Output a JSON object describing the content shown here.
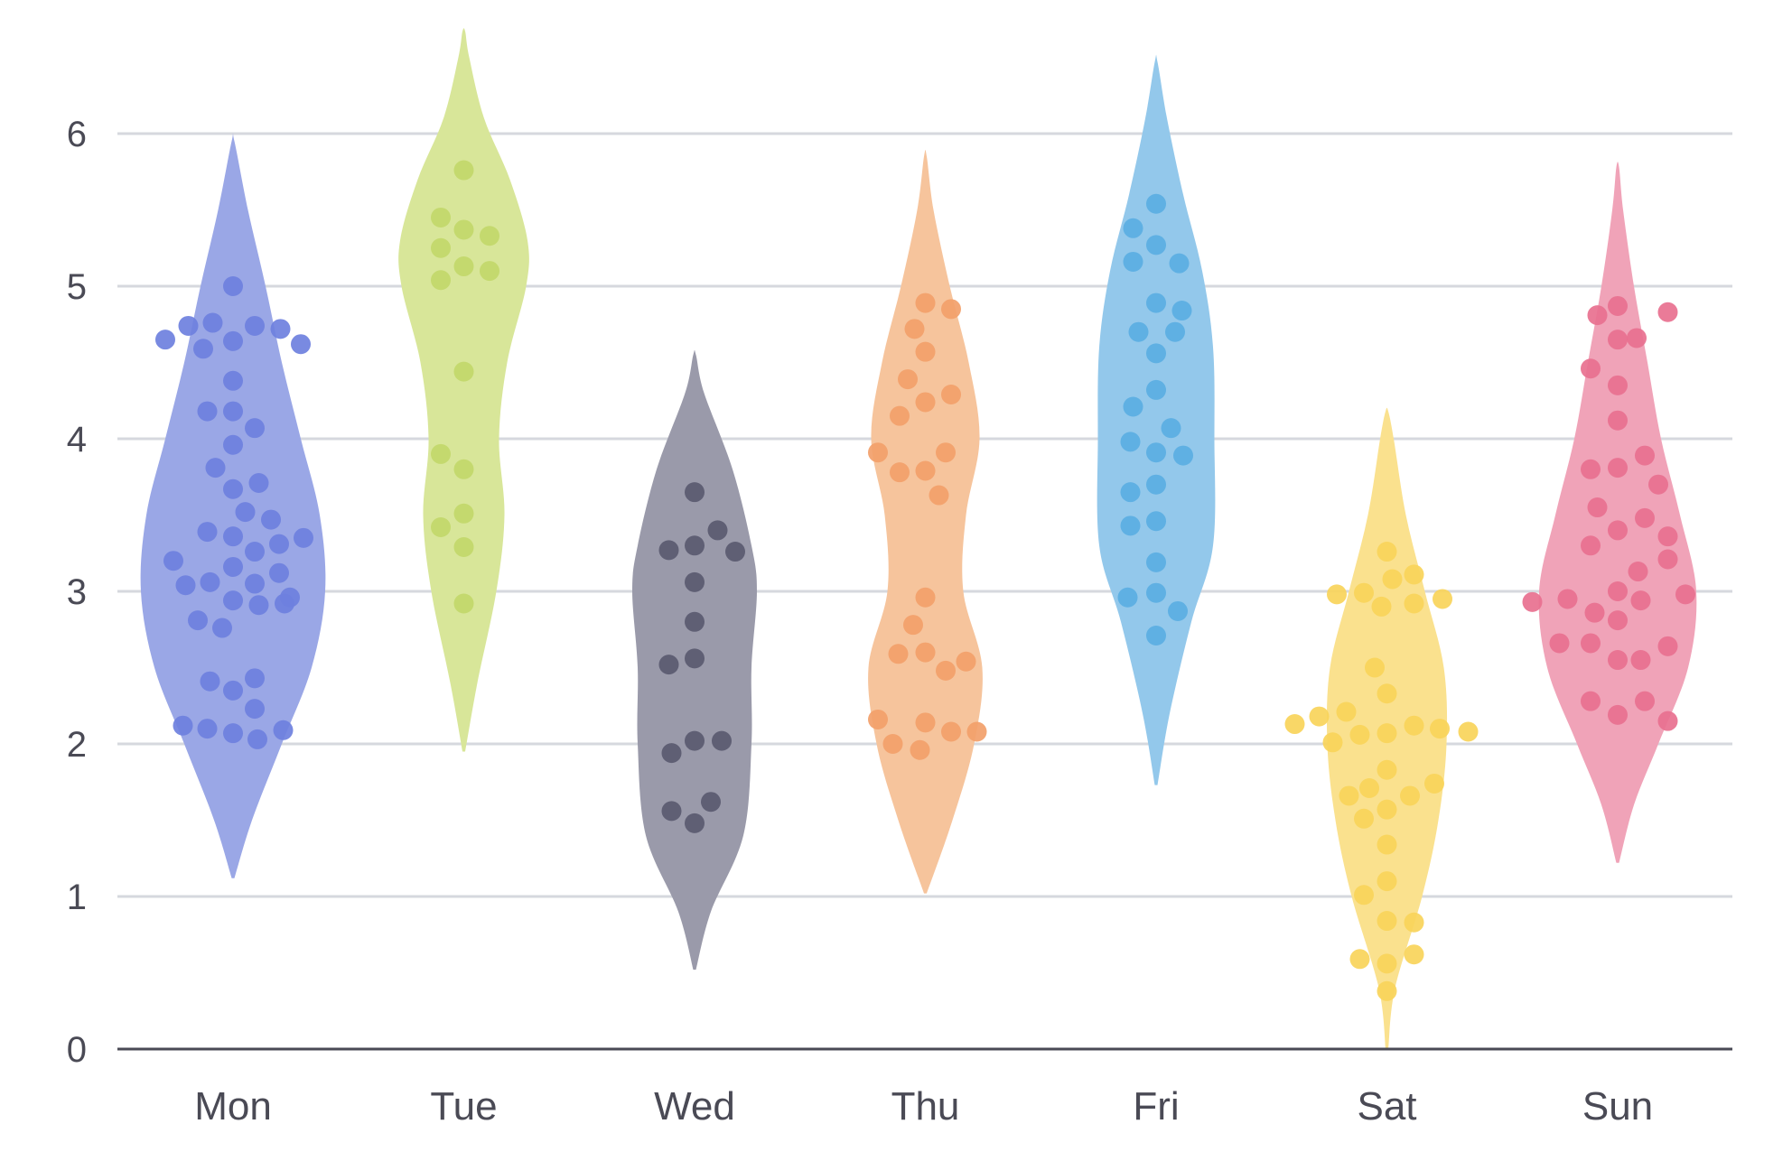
{
  "chart_data": {
    "type": "violin",
    "title": "",
    "xlabel": "",
    "ylabel": "",
    "ylim": [
      0,
      6.7
    ],
    "yticks": [
      0,
      1,
      2,
      3,
      4,
      5,
      6
    ],
    "grid": true,
    "categories": [
      "Mon",
      "Tue",
      "Wed",
      "Thu",
      "Fri",
      "Sat",
      "Sun"
    ],
    "series": [
      {
        "category": "Mon",
        "violin_color": "#9aa7e6",
        "point_color": "#6e80de",
        "density": [
          [
            1.12,
            0.01
          ],
          [
            1.5,
            0.14
          ],
          [
            2.0,
            0.36
          ],
          [
            2.5,
            0.58
          ],
          [
            3.0,
            0.68
          ],
          [
            3.5,
            0.64
          ],
          [
            4.0,
            0.5
          ],
          [
            4.5,
            0.36
          ],
          [
            5.0,
            0.24
          ],
          [
            5.5,
            0.11
          ],
          [
            5.95,
            0.01
          ]
        ],
        "points": [
          [
            -0.5,
            4.65
          ],
          [
            -0.33,
            4.74
          ],
          [
            -0.22,
            4.59
          ],
          [
            -0.15,
            4.76
          ],
          [
            0.0,
            4.64
          ],
          [
            0.16,
            4.74
          ],
          [
            0.35,
            4.72
          ],
          [
            0.5,
            4.62
          ],
          [
            0.0,
            5.0
          ],
          [
            0.0,
            4.38
          ],
          [
            -0.19,
            4.18
          ],
          [
            0.0,
            4.18
          ],
          [
            0.16,
            4.07
          ],
          [
            0.0,
            3.96
          ],
          [
            -0.13,
            3.81
          ],
          [
            0.0,
            3.67
          ],
          [
            0.19,
            3.71
          ],
          [
            0.09,
            3.52
          ],
          [
            0.28,
            3.47
          ],
          [
            -0.19,
            3.39
          ],
          [
            0.0,
            3.36
          ],
          [
            0.34,
            3.31
          ],
          [
            0.52,
            3.35
          ],
          [
            0.16,
            3.26
          ],
          [
            -0.44,
            3.2
          ],
          [
            0.0,
            3.16
          ],
          [
            0.34,
            3.12
          ],
          [
            -0.35,
            3.04
          ],
          [
            -0.17,
            3.06
          ],
          [
            0.16,
            3.05
          ],
          [
            0.0,
            2.94
          ],
          [
            0.19,
            2.91
          ],
          [
            0.38,
            2.92
          ],
          [
            0.42,
            2.96
          ],
          [
            -0.26,
            2.81
          ],
          [
            -0.08,
            2.76
          ],
          [
            -0.17,
            2.41
          ],
          [
            0.0,
            2.35
          ],
          [
            0.16,
            2.43
          ],
          [
            0.16,
            2.23
          ],
          [
            -0.37,
            2.12
          ],
          [
            -0.19,
            2.1
          ],
          [
            0.0,
            2.07
          ],
          [
            0.18,
            2.03
          ],
          [
            0.37,
            2.09
          ]
        ]
      },
      {
        "category": "Tue",
        "violin_color": "#d8e699",
        "point_color": "#c2d86a",
        "density": [
          [
            1.95,
            0.01
          ],
          [
            2.4,
            0.1
          ],
          [
            3.0,
            0.24
          ],
          [
            3.5,
            0.3
          ],
          [
            4.0,
            0.26
          ],
          [
            4.5,
            0.32
          ],
          [
            5.0,
            0.46
          ],
          [
            5.3,
            0.47
          ],
          [
            5.7,
            0.34
          ],
          [
            6.1,
            0.15
          ],
          [
            6.5,
            0.04
          ],
          [
            6.67,
            0.01
          ]
        ],
        "points": [
          [
            0.0,
            5.76
          ],
          [
            -0.17,
            5.45
          ],
          [
            0.0,
            5.37
          ],
          [
            0.19,
            5.33
          ],
          [
            -0.17,
            5.25
          ],
          [
            0.0,
            5.13
          ],
          [
            0.19,
            5.1
          ],
          [
            -0.17,
            5.04
          ],
          [
            0.0,
            4.44
          ],
          [
            -0.17,
            3.9
          ],
          [
            0.0,
            3.8
          ],
          [
            0.0,
            3.51
          ],
          [
            -0.17,
            3.42
          ],
          [
            0.0,
            3.29
          ],
          [
            0.0,
            2.92
          ]
        ]
      },
      {
        "category": "Wed",
        "violin_color": "#9a9aaa",
        "point_color": "#5a5a70",
        "density": [
          [
            0.52,
            0.01
          ],
          [
            0.9,
            0.12
          ],
          [
            1.4,
            0.36
          ],
          [
            2.0,
            0.42
          ],
          [
            2.5,
            0.42
          ],
          [
            3.0,
            0.46
          ],
          [
            3.3,
            0.42
          ],
          [
            3.8,
            0.28
          ],
          [
            4.3,
            0.07
          ],
          [
            4.55,
            0.01
          ]
        ],
        "points": [
          [
            0.0,
            3.65
          ],
          [
            -0.19,
            3.27
          ],
          [
            0.0,
            3.3
          ],
          [
            0.17,
            3.4
          ],
          [
            0.3,
            3.26
          ],
          [
            0.0,
            3.06
          ],
          [
            0.0,
            2.8
          ],
          [
            -0.19,
            2.52
          ],
          [
            0.0,
            2.56
          ],
          [
            -0.17,
            1.94
          ],
          [
            0.0,
            2.02
          ],
          [
            0.2,
            2.02
          ],
          [
            -0.17,
            1.56
          ],
          [
            0.0,
            1.48
          ],
          [
            0.12,
            1.62
          ]
        ]
      },
      {
        "category": "Thu",
        "violin_color": "#f6c49c",
        "point_color": "#f29f6a",
        "density": [
          [
            1.02,
            0.01
          ],
          [
            1.5,
            0.2
          ],
          [
            2.0,
            0.36
          ],
          [
            2.5,
            0.42
          ],
          [
            3.0,
            0.28
          ],
          [
            3.5,
            0.3
          ],
          [
            4.0,
            0.4
          ],
          [
            4.5,
            0.32
          ],
          [
            5.0,
            0.18
          ],
          [
            5.5,
            0.06
          ],
          [
            5.85,
            0.01
          ]
        ],
        "points": [
          [
            0.0,
            4.89
          ],
          [
            0.19,
            4.85
          ],
          [
            -0.08,
            4.72
          ],
          [
            0.0,
            4.57
          ],
          [
            -0.13,
            4.39
          ],
          [
            0.0,
            4.24
          ],
          [
            0.19,
            4.29
          ],
          [
            -0.19,
            4.15
          ],
          [
            -0.35,
            3.91
          ],
          [
            -0.19,
            3.78
          ],
          [
            0.0,
            3.79
          ],
          [
            0.15,
            3.91
          ],
          [
            0.1,
            3.63
          ],
          [
            0.0,
            2.96
          ],
          [
            -0.09,
            2.78
          ],
          [
            -0.2,
            2.59
          ],
          [
            0.0,
            2.6
          ],
          [
            0.15,
            2.48
          ],
          [
            0.3,
            2.54
          ],
          [
            -0.35,
            2.16
          ],
          [
            0.0,
            2.14
          ],
          [
            0.19,
            2.08
          ],
          [
            0.38,
            2.08
          ],
          [
            -0.24,
            2.0
          ],
          [
            -0.04,
            1.96
          ]
        ]
      },
      {
        "category": "Fri",
        "violin_color": "#93c8eb",
        "point_color": "#5aaee2",
        "density": [
          [
            1.73,
            0.01
          ],
          [
            2.2,
            0.1
          ],
          [
            2.8,
            0.26
          ],
          [
            3.3,
            0.42
          ],
          [
            4.0,
            0.43
          ],
          [
            4.6,
            0.42
          ],
          [
            5.1,
            0.34
          ],
          [
            5.6,
            0.2
          ],
          [
            6.1,
            0.08
          ],
          [
            6.47,
            0.01
          ]
        ],
        "points": [
          [
            0.0,
            5.54
          ],
          [
            -0.17,
            5.38
          ],
          [
            0.0,
            5.27
          ],
          [
            -0.17,
            5.16
          ],
          [
            0.17,
            5.15
          ],
          [
            0.0,
            4.89
          ],
          [
            0.19,
            4.84
          ],
          [
            -0.13,
            4.7
          ],
          [
            0.14,
            4.7
          ],
          [
            0.0,
            4.56
          ],
          [
            0.0,
            4.32
          ],
          [
            -0.17,
            4.21
          ],
          [
            0.11,
            4.07
          ],
          [
            -0.19,
            3.98
          ],
          [
            0.0,
            3.91
          ],
          [
            0.2,
            3.89
          ],
          [
            0.0,
            3.7
          ],
          [
            -0.19,
            3.65
          ],
          [
            0.0,
            3.46
          ],
          [
            -0.19,
            3.43
          ],
          [
            0.0,
            3.19
          ],
          [
            0.0,
            2.99
          ],
          [
            -0.21,
            2.96
          ],
          [
            0.16,
            2.87
          ],
          [
            0.0,
            2.71
          ]
        ]
      },
      {
        "category": "Sat",
        "violin_color": "#fae18e",
        "point_color": "#f9d45a",
        "density": [
          [
            0.0,
            0.01
          ],
          [
            0.4,
            0.06
          ],
          [
            1.0,
            0.26
          ],
          [
            1.5,
            0.38
          ],
          [
            2.0,
            0.44
          ],
          [
            2.5,
            0.42
          ],
          [
            3.0,
            0.28
          ],
          [
            3.5,
            0.14
          ],
          [
            4.0,
            0.05
          ],
          [
            4.18,
            0.01
          ]
        ],
        "points": [
          [
            0.0,
            3.26
          ],
          [
            0.04,
            3.08
          ],
          [
            -0.37,
            2.98
          ],
          [
            -0.17,
            2.99
          ],
          [
            0.2,
            3.11
          ],
          [
            -0.04,
            2.9
          ],
          [
            0.2,
            2.92
          ],
          [
            0.41,
            2.95
          ],
          [
            -0.09,
            2.5
          ],
          [
            0.0,
            2.33
          ],
          [
            -0.68,
            2.13
          ],
          [
            -0.5,
            2.18
          ],
          [
            -0.3,
            2.21
          ],
          [
            -0.4,
            2.01
          ],
          [
            -0.2,
            2.06
          ],
          [
            0.0,
            2.07
          ],
          [
            0.2,
            2.12
          ],
          [
            0.39,
            2.1
          ],
          [
            0.6,
            2.08
          ],
          [
            0.0,
            1.83
          ],
          [
            -0.13,
            1.71
          ],
          [
            -0.28,
            1.66
          ],
          [
            0.35,
            1.74
          ],
          [
            0.17,
            1.66
          ],
          [
            0.0,
            1.57
          ],
          [
            -0.17,
            1.51
          ],
          [
            0.0,
            1.34
          ],
          [
            0.0,
            1.1
          ],
          [
            -0.17,
            1.01
          ],
          [
            0.0,
            0.84
          ],
          [
            0.2,
            0.83
          ],
          [
            -0.2,
            0.59
          ],
          [
            0.0,
            0.56
          ],
          [
            0.2,
            0.62
          ],
          [
            0.0,
            0.38
          ]
        ]
      },
      {
        "category": "Sun",
        "violin_color": "#f0a3b8",
        "point_color": "#e8708f",
        "density": [
          [
            1.22,
            0.01
          ],
          [
            1.6,
            0.12
          ],
          [
            2.0,
            0.3
          ],
          [
            2.5,
            0.52
          ],
          [
            3.0,
            0.58
          ],
          [
            3.5,
            0.46
          ],
          [
            4.0,
            0.32
          ],
          [
            4.5,
            0.22
          ],
          [
            5.0,
            0.12
          ],
          [
            5.5,
            0.04
          ],
          [
            5.78,
            0.01
          ]
        ],
        "points": [
          [
            -0.15,
            4.81
          ],
          [
            0.0,
            4.87
          ],
          [
            0.37,
            4.83
          ],
          [
            0.0,
            4.65
          ],
          [
            0.14,
            4.66
          ],
          [
            -0.2,
            4.46
          ],
          [
            0.0,
            4.35
          ],
          [
            0.0,
            4.12
          ],
          [
            -0.2,
            3.8
          ],
          [
            0.0,
            3.81
          ],
          [
            0.2,
            3.89
          ],
          [
            0.3,
            3.7
          ],
          [
            -0.15,
            3.55
          ],
          [
            0.2,
            3.48
          ],
          [
            0.0,
            3.4
          ],
          [
            0.37,
            3.36
          ],
          [
            -0.2,
            3.3
          ],
          [
            0.15,
            3.13
          ],
          [
            0.37,
            3.21
          ],
          [
            -0.63,
            2.93
          ],
          [
            -0.37,
            2.95
          ],
          [
            -0.17,
            2.86
          ],
          [
            0.0,
            3.0
          ],
          [
            0.17,
            2.94
          ],
          [
            0.5,
            2.98
          ],
          [
            0.0,
            2.81
          ],
          [
            -0.43,
            2.66
          ],
          [
            -0.2,
            2.66
          ],
          [
            0.37,
            2.64
          ],
          [
            0.0,
            2.55
          ],
          [
            0.17,
            2.55
          ],
          [
            -0.2,
            2.28
          ],
          [
            0.2,
            2.28
          ],
          [
            0.0,
            2.19
          ],
          [
            0.37,
            2.15
          ]
        ]
      }
    ]
  }
}
